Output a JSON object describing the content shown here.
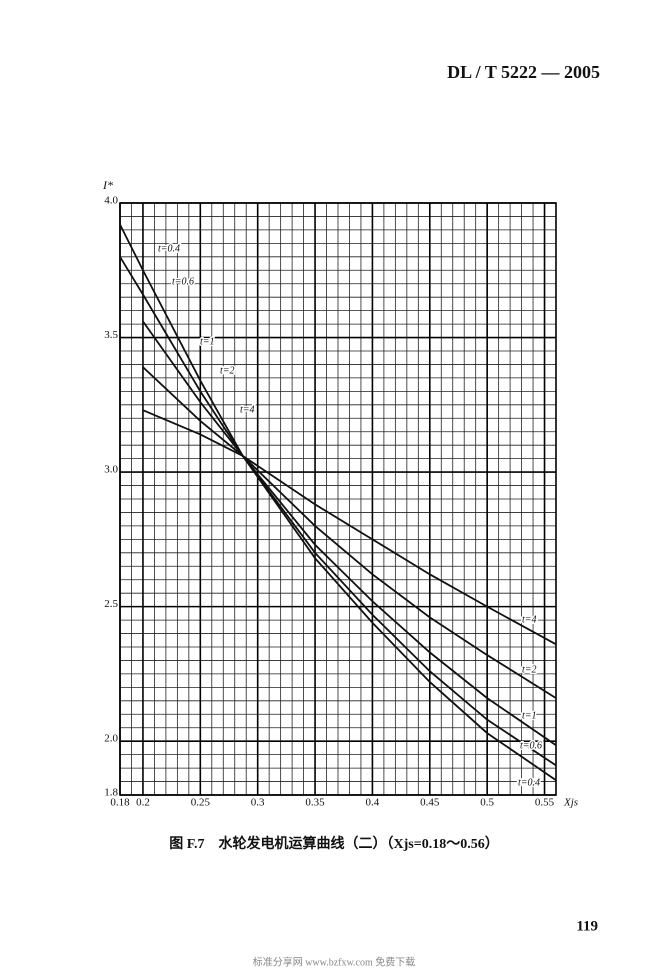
{
  "header": {
    "code": "DL / T 5222 — 2005"
  },
  "chart_data": {
    "type": "line",
    "ylabel": "I*",
    "xlabel": "Xjs",
    "xlim": [
      0.18,
      0.56
    ],
    "ylim": [
      1.8,
      4.0
    ],
    "xticks": [
      0.18,
      0.2,
      0.25,
      0.3,
      0.35,
      0.4,
      0.45,
      0.5,
      0.55
    ],
    "yticks": [
      1.8,
      {
        "value": 2.0,
        "label": "2.0"
      },
      2.5,
      {
        "value": 3.0,
        "label": "3.0"
      },
      3.5,
      {
        "value": 4.0,
        "label": "4.0"
      }
    ],
    "grid": true,
    "color": "#111111",
    "series": [
      {
        "name": "t=0.4",
        "x": [
          0.18,
          0.2,
          0.25,
          0.287,
          0.35,
          0.4,
          0.45,
          0.5,
          0.56
        ],
        "values": [
          3.92,
          3.75,
          3.34,
          3.06,
          2.68,
          2.44,
          2.22,
          2.03,
          1.855
        ]
      },
      {
        "name": "t=0.6",
        "x": [
          0.18,
          0.2,
          0.25,
          0.287,
          0.35,
          0.4,
          0.45,
          0.5,
          0.56
        ],
        "values": [
          3.8,
          3.66,
          3.3,
          3.06,
          2.7,
          2.47,
          2.26,
          2.08,
          1.91
        ]
      },
      {
        "name": "t=1",
        "x": [
          0.2,
          0.25,
          0.287,
          0.35,
          0.4,
          0.45,
          0.5,
          0.56
        ],
        "values": [
          3.56,
          3.26,
          3.06,
          2.73,
          2.52,
          2.33,
          2.16,
          1.985
        ]
      },
      {
        "name": "t=2",
        "x": [
          0.2,
          0.25,
          0.287,
          0.35,
          0.4,
          0.45,
          0.5,
          0.56
        ],
        "values": [
          3.39,
          3.19,
          3.06,
          2.8,
          2.62,
          2.46,
          2.32,
          2.16
        ]
      },
      {
        "name": "t=4",
        "x": [
          0.2,
          0.25,
          0.287,
          0.35,
          0.4,
          0.45,
          0.5,
          0.56
        ],
        "values": [
          3.23,
          3.14,
          3.06,
          2.88,
          2.75,
          2.62,
          2.5,
          2.36
        ]
      }
    ]
  },
  "caption": "图 F.7　水轮发电机运算曲线（二）（Xjs=0.18～0.56）",
  "page_number": "119",
  "footer": "标准分享网 www.bzfxw.com 免费下载"
}
